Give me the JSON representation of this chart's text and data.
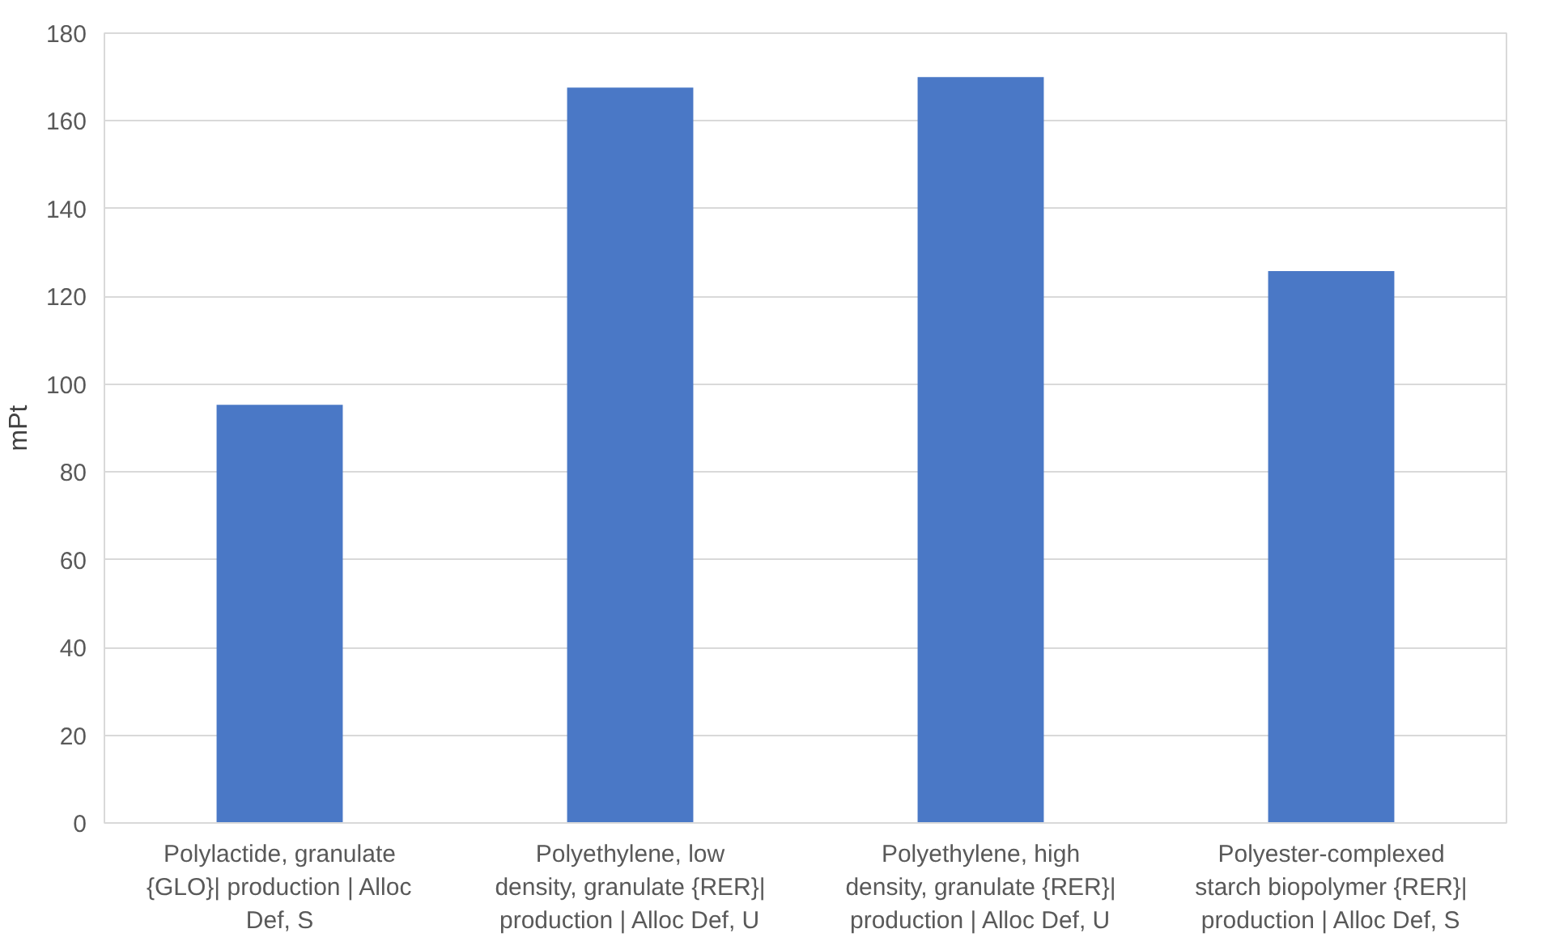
{
  "chart_data": {
    "type": "bar",
    "ylabel": "mPt",
    "categories": [
      "Polylactide, granulate {GLO}| production | Alloc Def, S",
      "Polyethylene, low density, granulate {RER}| production | Alloc Def, U",
      "Polyethylene, high density, granulate {RER}| production | Alloc Def, U",
      "Polyester-complexed starch biopolymer {RER}| production | Alloc Def, S"
    ],
    "values": [
      95.3,
      167.6,
      170,
      125.8
    ],
    "color": "#4a78c6",
    "ylim": [
      0,
      180
    ],
    "yticks": [
      0,
      20,
      40,
      60,
      80,
      100,
      120,
      140,
      160,
      180
    ],
    "grid": "y"
  }
}
